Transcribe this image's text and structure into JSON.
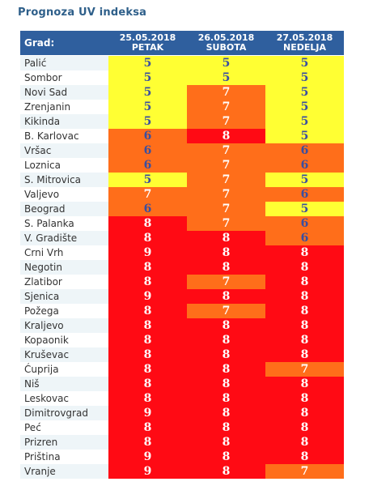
{
  "title": "Prognoza UV indeksa",
  "header": {
    "city_label": "Grad:",
    "days": [
      {
        "date": "25.05.2018",
        "day": "PETAK"
      },
      {
        "date": "26.05.2018",
        "day": "SUBOTA"
      },
      {
        "date": "27.05.2018",
        "day": "NEDELJA"
      }
    ]
  },
  "colors": {
    "header_bg": "#2f5f9e",
    "uv5": "#ffff33",
    "uv6_7": "#ff6e1a",
    "uv8_9": "#ff0a14"
  },
  "rows": [
    {
      "city": "Palić",
      "values": [
        "5",
        "5",
        "5"
      ]
    },
    {
      "city": "Sombor",
      "values": [
        "5",
        "5",
        "5"
      ]
    },
    {
      "city": "Novi Sad",
      "values": [
        "5",
        "7",
        "5"
      ]
    },
    {
      "city": "Zrenjanin",
      "values": [
        "5",
        "7",
        "5"
      ]
    },
    {
      "city": "Kikinda",
      "values": [
        "5",
        "7",
        "5"
      ]
    },
    {
      "city": "B. Karlovac",
      "values": [
        "6",
        "8",
        "5"
      ]
    },
    {
      "city": "Vršac",
      "values": [
        "6",
        "7",
        "6"
      ]
    },
    {
      "city": "Loznica",
      "values": [
        "6",
        "7",
        "6"
      ]
    },
    {
      "city": "S. Mitrovica",
      "values": [
        "5",
        "7",
        "5"
      ]
    },
    {
      "city": "Valjevo",
      "values": [
        "7",
        "7",
        "6"
      ]
    },
    {
      "city": "Beograd",
      "values": [
        "6",
        "7",
        "5"
      ]
    },
    {
      "city": "S. Palanka",
      "values": [
        "8",
        "7",
        "6"
      ]
    },
    {
      "city": "V. Gradište",
      "values": [
        "8",
        "8",
        "6"
      ]
    },
    {
      "city": "Crni Vrh",
      "values": [
        "9",
        "8",
        "8"
      ]
    },
    {
      "city": "Negotin",
      "values": [
        "8",
        "8",
        "8"
      ]
    },
    {
      "city": "Zlatibor",
      "values": [
        "8",
        "7",
        "8"
      ]
    },
    {
      "city": "Sjenica",
      "values": [
        "9",
        "8",
        "8"
      ]
    },
    {
      "city": "Požega",
      "values": [
        "8",
        "7",
        "8"
      ]
    },
    {
      "city": "Kraljevo",
      "values": [
        "8",
        "8",
        "8"
      ]
    },
    {
      "city": "Kopaonik",
      "values": [
        "8",
        "8",
        "8"
      ]
    },
    {
      "city": "Kruševac",
      "values": [
        "8",
        "8",
        "8"
      ]
    },
    {
      "city": "Ćuprija",
      "values": [
        "8",
        "8",
        "7"
      ]
    },
    {
      "city": "Niš",
      "values": [
        "8",
        "8",
        "8"
      ]
    },
    {
      "city": "Leskovac",
      "values": [
        "8",
        "8",
        "8"
      ]
    },
    {
      "city": "Dimitrovgrad",
      "values": [
        "9",
        "8",
        "8"
      ]
    },
    {
      "city": "Peć",
      "values": [
        "8",
        "8",
        "8"
      ]
    },
    {
      "city": "Prizren",
      "values": [
        "8",
        "8",
        "8"
      ]
    },
    {
      "city": "Priština",
      "values": [
        "9",
        "8",
        "8"
      ]
    },
    {
      "city": "Vranje",
      "values": [
        "9",
        "8",
        "7"
      ]
    }
  ]
}
